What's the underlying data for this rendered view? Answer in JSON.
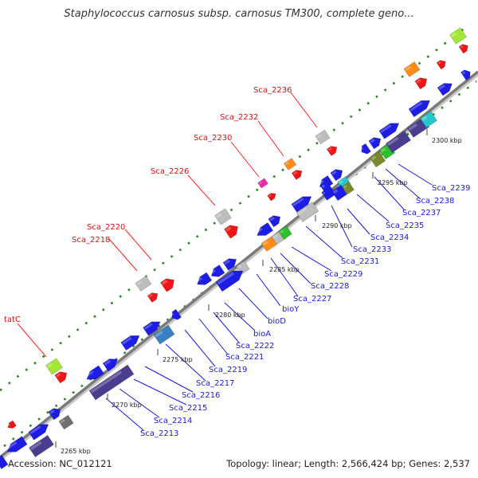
{
  "title": "Staphylococcus carnosus subsp. carnosus TM300, complete geno...",
  "footer": {
    "accession": "Accession: NC_012121",
    "topology": "Topology: linear; Length: 2,566,424 bp; Genes: 2,537"
  },
  "colors": {
    "backbone": "#7a7a7a",
    "label_red": "#dd1111",
    "label_blue": "#1a1ad8",
    "leader_red": "#ff2222",
    "leader_blue": "#1a1ad8",
    "dot_green": "#228822"
  },
  "scale_ticks": [
    "2265 kbp",
    "2270 kbp",
    "2275 kbp",
    "2280 kbp",
    "2285 kbp",
    "2290 kbp",
    "2295 kbp",
    "2300 kbp"
  ],
  "labels_top": [
    "tatC",
    "Sca_2218",
    "Sca_2220",
    "Sca_2226",
    "Sca_2230",
    "Sca_2232",
    "Sca_2236"
  ],
  "labels_bottom": [
    "Sca_2213",
    "Sca_2214",
    "Sca_2215",
    "Sca_2216",
    "Sca_2217",
    "Sca_2219",
    "Sca_2221",
    "Sca_2222",
    "bioA",
    "bioD",
    "bioY",
    "Sca_2227",
    "Sca_2228",
    "Sca_2229",
    "Sca_2231",
    "Sca_2233",
    "Sca_2234",
    "Sca_2235",
    "Sca_2237",
    "Sca_2238",
    "Sca_2239"
  ]
}
